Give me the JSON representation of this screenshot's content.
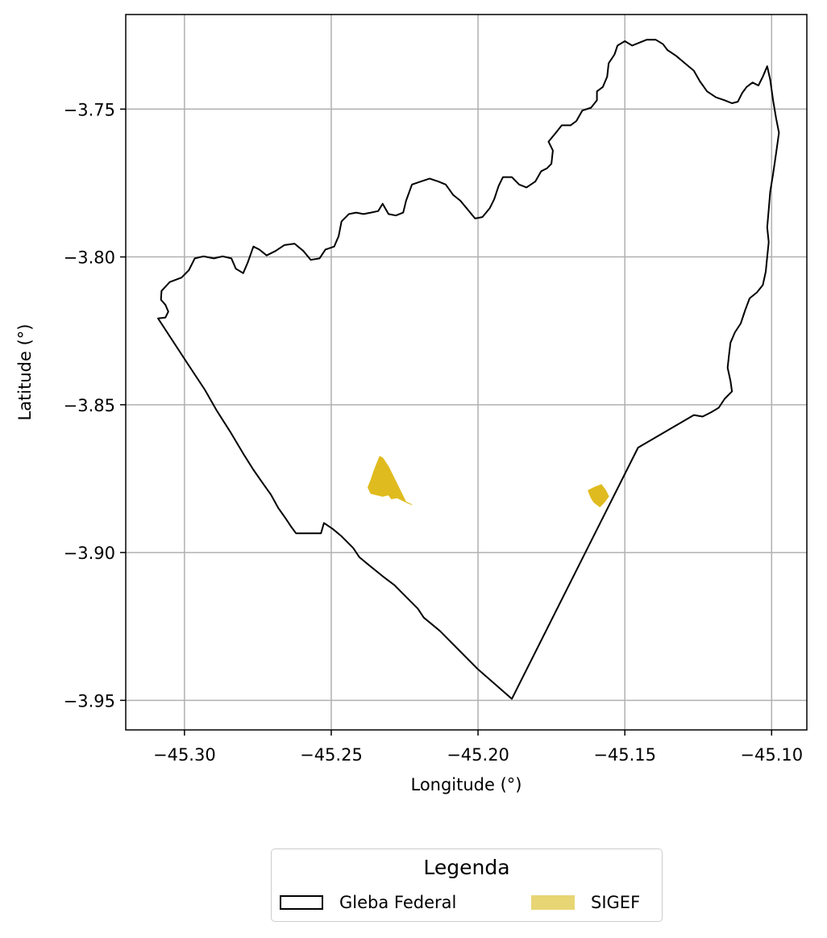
{
  "chart_data": {
    "type": "map",
    "xlabel": "Longitude (°)",
    "ylabel": "Latitude (°)",
    "xlim": [
      -45.32,
      -45.088
    ],
    "ylim": [
      -3.96,
      -3.718
    ],
    "xticks": [
      -45.3,
      -45.25,
      -45.2,
      -45.15,
      -45.1
    ],
    "xtick_labels": [
      "−45.30",
      "−45.25",
      "−45.20",
      "−45.15",
      "−45.10"
    ],
    "yticks": [
      -3.75,
      -3.8,
      -3.85,
      -3.9,
      -3.95
    ],
    "ytick_labels": [
      "−3.75",
      "−3.80",
      "−3.85",
      "−3.90",
      "−3.95"
    ],
    "grid": true,
    "legend": {
      "title": "Legenda",
      "placement": "below",
      "entries": [
        {
          "label": "Gleba Federal",
          "style": "outline",
          "color": "#000000"
        },
        {
          "label": "SIGEF",
          "style": "fill",
          "color": "#e8d574"
        }
      ]
    },
    "layers": [
      {
        "name": "Gleba Federal",
        "edge_color": "#000000",
        "fill": "none",
        "coordinates": [
          [
            -45.309,
            -3.8208
          ],
          [
            -45.3065,
            -3.8205
          ],
          [
            -45.3055,
            -3.8185
          ],
          [
            -45.3065,
            -3.8162
          ],
          [
            -45.308,
            -3.8145
          ],
          [
            -45.3078,
            -3.8115
          ],
          [
            -45.305,
            -3.8085
          ],
          [
            -45.301,
            -3.807
          ],
          [
            -45.2985,
            -3.8045
          ],
          [
            -45.2965,
            -3.8005
          ],
          [
            -45.2935,
            -3.7998
          ],
          [
            -45.29,
            -3.8005
          ],
          [
            -45.287,
            -3.7998
          ],
          [
            -45.284,
            -3.8005
          ],
          [
            -45.2825,
            -3.804
          ],
          [
            -45.28,
            -3.8055
          ],
          [
            -45.2785,
            -3.802
          ],
          [
            -45.2765,
            -3.7965
          ],
          [
            -45.2745,
            -3.7975
          ],
          [
            -45.272,
            -3.7995
          ],
          [
            -45.269,
            -3.798
          ],
          [
            -45.266,
            -3.796
          ],
          [
            -45.2625,
            -3.7955
          ],
          [
            -45.2595,
            -3.798
          ],
          [
            -45.257,
            -3.801
          ],
          [
            -45.254,
            -3.8005
          ],
          [
            -45.252,
            -3.7975
          ],
          [
            -45.249,
            -3.7965
          ],
          [
            -45.2475,
            -3.793
          ],
          [
            -45.2465,
            -3.788
          ],
          [
            -45.244,
            -3.7855
          ],
          [
            -45.2415,
            -3.785
          ],
          [
            -45.239,
            -3.7855
          ],
          [
            -45.2365,
            -3.785
          ],
          [
            -45.234,
            -3.7845
          ],
          [
            -45.2325,
            -3.782
          ],
          [
            -45.2305,
            -3.7855
          ],
          [
            -45.228,
            -3.786
          ],
          [
            -45.2255,
            -3.785
          ],
          [
            -45.2245,
            -3.781
          ],
          [
            -45.2225,
            -3.7755
          ],
          [
            -45.2195,
            -3.7745
          ],
          [
            -45.2165,
            -3.7735
          ],
          [
            -45.2135,
            -3.7745
          ],
          [
            -45.211,
            -3.7755
          ],
          [
            -45.2085,
            -3.779
          ],
          [
            -45.206,
            -3.781
          ],
          [
            -45.2035,
            -3.784
          ],
          [
            -45.201,
            -3.787
          ],
          [
            -45.1985,
            -3.7865
          ],
          [
            -45.196,
            -3.7835
          ],
          [
            -45.1945,
            -3.7805
          ],
          [
            -45.193,
            -3.776
          ],
          [
            -45.1915,
            -3.773
          ],
          [
            -45.1885,
            -3.773
          ],
          [
            -45.186,
            -3.7755
          ],
          [
            -45.1835,
            -3.7765
          ],
          [
            -45.1805,
            -3.7745
          ],
          [
            -45.1785,
            -3.771
          ],
          [
            -45.1765,
            -3.77
          ],
          [
            -45.175,
            -3.7685
          ],
          [
            -45.1745,
            -3.764
          ],
          [
            -45.176,
            -3.761
          ],
          [
            -45.1735,
            -3.758
          ],
          [
            -45.1715,
            -3.7555
          ],
          [
            -45.1685,
            -3.7555
          ],
          [
            -45.1665,
            -3.754
          ],
          [
            -45.1645,
            -3.7505
          ],
          [
            -45.1615,
            -3.7495
          ],
          [
            -45.1595,
            -3.747
          ],
          [
            -45.1595,
            -3.744
          ],
          [
            -45.1575,
            -3.7425
          ],
          [
            -45.156,
            -3.739
          ],
          [
            -45.1555,
            -3.7345
          ],
          [
            -45.1535,
            -3.7315
          ],
          [
            -45.1525,
            -3.7285
          ],
          [
            -45.15,
            -3.727
          ],
          [
            -45.1475,
            -3.7285
          ],
          [
            -45.145,
            -3.7275
          ],
          [
            -45.1425,
            -3.7265
          ],
          [
            -45.1395,
            -3.7265
          ],
          [
            -45.137,
            -3.728
          ],
          [
            -45.1355,
            -3.73
          ],
          [
            -45.1325,
            -3.732
          ],
          [
            -45.1295,
            -3.7345
          ],
          [
            -45.1265,
            -3.737
          ],
          [
            -45.1245,
            -3.7405
          ],
          [
            -45.122,
            -3.744
          ],
          [
            -45.119,
            -3.746
          ],
          [
            -45.116,
            -3.747
          ],
          [
            -45.1135,
            -3.748
          ],
          [
            -45.1115,
            -3.7475
          ],
          [
            -45.11,
            -3.7445
          ],
          [
            -45.1085,
            -3.7425
          ],
          [
            -45.1065,
            -3.741
          ],
          [
            -45.1045,
            -3.742
          ],
          [
            -45.103,
            -3.739
          ],
          [
            -45.1015,
            -3.7355
          ],
          [
            -45.1005,
            -3.74
          ],
          [
            -45.0995,
            -3.747
          ],
          [
            -45.0985,
            -3.753
          ],
          [
            -45.0975,
            -3.758
          ],
          [
            -45.0985,
            -3.765
          ],
          [
            -45.0995,
            -3.772
          ],
          [
            -45.1005,
            -3.778
          ],
          [
            -45.101,
            -3.784
          ],
          [
            -45.1015,
            -3.79
          ],
          [
            -45.101,
            -3.795
          ],
          [
            -45.1015,
            -3.8
          ],
          [
            -45.102,
            -3.805
          ],
          [
            -45.103,
            -3.8095
          ],
          [
            -45.105,
            -3.812
          ],
          [
            -45.1075,
            -3.814
          ],
          [
            -45.109,
            -3.818
          ],
          [
            -45.1105,
            -3.8225
          ],
          [
            -45.1125,
            -3.8255
          ],
          [
            -45.114,
            -3.829
          ],
          [
            -45.1145,
            -3.833
          ],
          [
            -45.115,
            -3.8375
          ],
          [
            -45.114,
            -3.842
          ],
          [
            -45.1135,
            -3.8455
          ],
          [
            -45.116,
            -3.848
          ],
          [
            -45.118,
            -3.851
          ],
          [
            -45.1205,
            -3.8525
          ],
          [
            -45.1235,
            -3.854
          ],
          [
            -45.1265,
            -3.8535
          ],
          [
            -45.1455,
            -3.8645
          ],
          [
            -45.1885,
            -3.9495
          ],
          [
            -45.2,
            -3.9395
          ],
          [
            -45.208,
            -3.9315
          ],
          [
            -45.213,
            -3.9265
          ],
          [
            -45.2185,
            -3.922
          ],
          [
            -45.2205,
            -3.919
          ],
          [
            -45.2255,
            -3.914
          ],
          [
            -45.2285,
            -3.911
          ],
          [
            -45.2325,
            -3.908
          ],
          [
            -45.2375,
            -3.904
          ],
          [
            -45.2405,
            -3.9015
          ],
          [
            -45.2425,
            -3.8985
          ],
          [
            -45.2465,
            -3.8945
          ],
          [
            -45.2495,
            -3.892
          ],
          [
            -45.2525,
            -3.89
          ],
          [
            -45.2535,
            -3.8935
          ],
          [
            -45.262,
            -3.8935
          ],
          [
            -45.2635,
            -3.8915
          ],
          [
            -45.2655,
            -3.8885
          ],
          [
            -45.268,
            -3.885
          ],
          [
            -45.2705,
            -3.8805
          ],
          [
            -45.273,
            -3.877
          ],
          [
            -45.2765,
            -3.872
          ],
          [
            -45.28,
            -3.8665
          ],
          [
            -45.2845,
            -3.859
          ],
          [
            -45.289,
            -3.852
          ],
          [
            -45.293,
            -3.845
          ],
          [
            -45.299,
            -3.836
          ],
          [
            -45.309,
            -3.8208
          ]
        ]
      },
      {
        "name": "SIGEF",
        "fill_color": "#e0bb1f",
        "polygons": [
          [
            [
              -45.2335,
              -3.8675
            ],
            [
              -45.2325,
              -3.868
            ],
            [
              -45.2305,
              -3.871
            ],
            [
              -45.2285,
              -3.875
            ],
            [
              -45.2265,
              -3.879
            ],
            [
              -45.2245,
              -3.883
            ],
            [
              -45.2225,
              -3.8838
            ],
            [
              -45.2255,
              -3.8825
            ],
            [
              -45.2275,
              -3.8815
            ],
            [
              -45.2295,
              -3.8818
            ],
            [
              -45.2305,
              -3.8805
            ],
            [
              -45.2325,
              -3.881
            ],
            [
              -45.2345,
              -3.8805
            ],
            [
              -45.2365,
              -3.88
            ],
            [
              -45.2375,
              -3.878
            ],
            [
              -45.2365,
              -3.8755
            ],
            [
              -45.2355,
              -3.8725
            ],
            [
              -45.2345,
              -3.87
            ],
            [
              -45.2335,
              -3.8675
            ]
          ],
          [
            [
              -45.158,
              -3.877
            ],
            [
              -45.1605,
              -3.878
            ],
            [
              -45.1625,
              -3.879
            ],
            [
              -45.1615,
              -3.8815
            ],
            [
              -45.1605,
              -3.883
            ],
            [
              -45.1585,
              -3.8845
            ],
            [
              -45.157,
              -3.883
            ],
            [
              -45.1555,
              -3.881
            ],
            [
              -45.1565,
              -3.879
            ],
            [
              -45.158,
              -3.877
            ]
          ]
        ]
      }
    ]
  }
}
